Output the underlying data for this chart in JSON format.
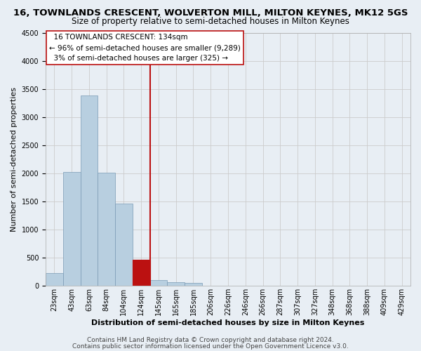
{
  "title1": "16, TOWNLANDS CRESCENT, WOLVERTON MILL, MILTON KEYNES, MK12 5GS",
  "title2": "Size of property relative to semi-detached houses in Milton Keynes",
  "xlabel": "Distribution of semi-detached houses by size in Milton Keynes",
  "ylabel": "Number of semi-detached properties",
  "footer1": "Contains HM Land Registry data © Crown copyright and database right 2024.",
  "footer2": "Contains public sector information licensed under the Open Government Licence v3.0.",
  "annotation_title": "16 TOWNLANDS CRESCENT: 134sqm",
  "annotation_line1": "← 96% of semi-detached houses are smaller (9,289)",
  "annotation_line2": "3% of semi-detached houses are larger (325) →",
  "bar_color": "#b8cfe0",
  "bar_edge_color": "#7a9ab5",
  "highlight_color": "#bb1111",
  "background_color": "#e8eef4",
  "annotation_box_color": "#ffffff",
  "annotation_box_edge": "#bb1111",
  "ylim": [
    0,
    4500
  ],
  "yticks": [
    0,
    500,
    1000,
    1500,
    2000,
    2500,
    3000,
    3500,
    4000,
    4500
  ],
  "bin_labels": [
    "23sqm",
    "43sqm",
    "63sqm",
    "84sqm",
    "104sqm",
    "124sqm",
    "145sqm",
    "165sqm",
    "185sqm",
    "206sqm",
    "226sqm",
    "246sqm",
    "266sqm",
    "287sqm",
    "307sqm",
    "327sqm",
    "348sqm",
    "368sqm",
    "388sqm",
    "409sqm",
    "429sqm"
  ],
  "heights": [
    230,
    2020,
    3380,
    2010,
    1460,
    460,
    100,
    60,
    50,
    0,
    0,
    0,
    0,
    0,
    0,
    0,
    0,
    0,
    0,
    0,
    0
  ],
  "highlight_bar_idx": 5,
  "vline_x": 5.5,
  "title1_fontsize": 9.5,
  "title2_fontsize": 8.5,
  "tick_fontsize": 7,
  "ylabel_fontsize": 8,
  "xlabel_fontsize": 8,
  "footer_fontsize": 6.5,
  "annotation_fontsize": 7.5
}
